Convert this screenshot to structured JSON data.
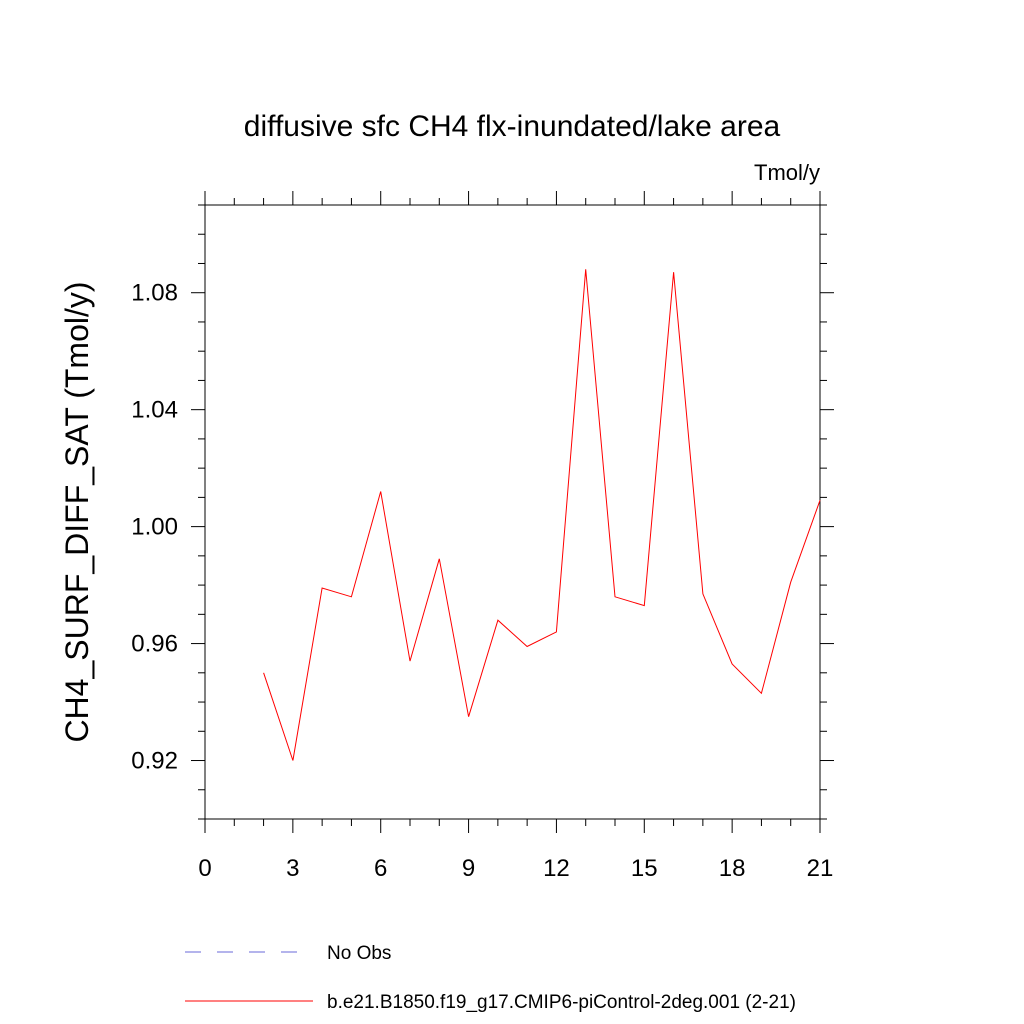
{
  "chart_data": {
    "type": "line",
    "title": "diffusive sfc CH4 flx-inundated/lake area",
    "units": "Tmol/y",
    "ylabel": "CH4_SURF_DIFF_SAT  (Tmol/y)",
    "xlabel": "",
    "xlim": [
      0,
      21
    ],
    "ylim": [
      0.9,
      1.11
    ],
    "x_ticks": [
      0,
      3,
      6,
      9,
      12,
      15,
      18,
      21
    ],
    "x_tick_labels": [
      "0",
      "3",
      "6",
      "9",
      "12",
      "15",
      "18",
      "21"
    ],
    "y_ticks": [
      0.92,
      0.96,
      1.0,
      1.04,
      1.08
    ],
    "y_tick_labels": [
      "0.92",
      "0.96",
      "1.00",
      "1.04",
      "1.08"
    ],
    "grid": false,
    "series": [
      {
        "name": "b.e21.B1850.f19_g17.CMIP6-piControl-2deg.001 (2-21)",
        "color": "#ff0000",
        "x": [
          2,
          3,
          4,
          5,
          6,
          7,
          8,
          9,
          10,
          11,
          12,
          13,
          14,
          15,
          16,
          17,
          18,
          19,
          20,
          21
        ],
        "y": [
          0.95,
          0.92,
          0.979,
          0.976,
          1.012,
          0.954,
          0.989,
          0.935,
          0.968,
          0.959,
          0.964,
          1.088,
          0.976,
          0.973,
          1.087,
          0.977,
          0.953,
          0.943,
          0.981,
          1.009
        ]
      }
    ],
    "legend": {
      "placement": "bottom",
      "entries": [
        {
          "label": "No Obs",
          "color": "#6a6ad8",
          "style": "dashed"
        },
        {
          "label": "b.e21.B1850.f19_g17.CMIP6-piControl-2deg.001 (2-21)",
          "color": "#ff0000",
          "style": "solid"
        }
      ]
    }
  }
}
